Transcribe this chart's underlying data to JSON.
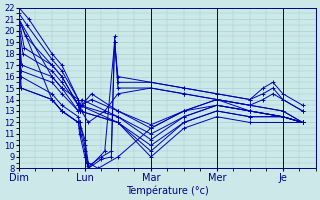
{
  "xlabel": "Température (°c)",
  "day_labels": [
    "Dim",
    "Lun",
    "Mar",
    "Mer",
    "Je"
  ],
  "bg_color": "#cce8e8",
  "grid_color": "#99cccc",
  "line_color": "#0000bb",
  "figsize": [
    3.2,
    2.0
  ],
  "dpi": 100,
  "ylim": [
    8,
    22
  ],
  "xlim_days": 4.5,
  "lines": [
    {
      "x": [
        0.0,
        0.15,
        0.5,
        0.65,
        0.9,
        0.92,
        0.95,
        1.1,
        1.5,
        2.0,
        2.5,
        3.0,
        3.5,
        4.0,
        4.3
      ],
      "y": [
        22,
        21,
        18,
        17,
        14,
        13,
        13.5,
        14,
        13,
        11.8,
        13,
        14,
        13.5,
        13,
        12
      ]
    },
    {
      "x": [
        0.0,
        0.12,
        0.5,
        0.65,
        0.9,
        0.92,
        0.95,
        1.1,
        1.5,
        2.0,
        2.5,
        3.0,
        3.5,
        4.0,
        4.3
      ],
      "y": [
        21.5,
        20.5,
        17.5,
        16.5,
        14,
        13,
        13.5,
        14.5,
        13,
        11.5,
        13,
        14,
        13,
        12.5,
        12
      ]
    },
    {
      "x": [
        0.0,
        0.1,
        0.5,
        0.65,
        0.9,
        0.92,
        0.95,
        1.5,
        2.0,
        2.5,
        3.0,
        3.5,
        4.0,
        4.3
      ],
      "y": [
        21,
        19.5,
        17,
        16,
        13.5,
        13,
        14,
        12.5,
        11,
        12.5,
        13.5,
        13,
        12.5,
        12
      ]
    },
    {
      "x": [
        0.0,
        0.08,
        0.5,
        0.65,
        0.9,
        0.92,
        1.5,
        2.0,
        2.5,
        3.0,
        3.5,
        4.0,
        4.3
      ],
      "y": [
        21,
        18.5,
        17,
        16,
        13.5,
        13.5,
        12.5,
        10.5,
        12.5,
        13.5,
        13,
        12.5,
        12
      ]
    },
    {
      "x": [
        0.0,
        0.06,
        0.5,
        0.65,
        0.9,
        0.92,
        1.5,
        2.0,
        2.5,
        3.0,
        3.5,
        4.0,
        4.3
      ],
      "y": [
        20.5,
        18,
        16.5,
        15.5,
        13.5,
        13.5,
        12,
        10,
        12,
        13,
        12.5,
        12.5,
        12
      ]
    },
    {
      "x": [
        0.0,
        0.04,
        0.5,
        0.65,
        0.9,
        0.92,
        1.5,
        2.0,
        2.5,
        3.0,
        3.5,
        4.0,
        4.3
      ],
      "y": [
        20,
        17,
        16,
        15,
        13,
        13,
        12,
        9.5,
        12,
        13,
        12.5,
        12.5,
        12
      ]
    },
    {
      "x": [
        0.0,
        0.03,
        0.5,
        0.65,
        0.9,
        0.92,
        1.5,
        2.0,
        2.5,
        3.0,
        3.5,
        4.0,
        4.3
      ],
      "y": [
        19.5,
        16.5,
        15.5,
        14.5,
        13,
        13,
        12,
        9,
        11.5,
        12.5,
        12,
        12,
        12
      ]
    },
    {
      "x": [
        0.0,
        0.03,
        0.5,
        0.65,
        0.9,
        0.92,
        1.0,
        1.05,
        1.2,
        1.5,
        2.0,
        2.5,
        3.0,
        3.5,
        4.0,
        4.3
      ],
      "y": [
        21,
        16,
        14.5,
        13.5,
        12.5,
        12,
        10.5,
        8.5,
        8,
        9,
        11.5,
        13,
        13.5,
        13,
        12.5,
        12
      ]
    },
    {
      "x": [
        0.0,
        0.03,
        0.5,
        0.65,
        0.9,
        0.92,
        1.0,
        1.05,
        1.25,
        1.4,
        1.45,
        1.5,
        2.0,
        2.5,
        3.0,
        3.5,
        3.7,
        3.85,
        4.0,
        4.3
      ],
      "y": [
        21,
        15,
        14,
        13,
        12,
        12,
        10,
        8.2,
        9,
        9.5,
        19.5,
        15,
        15,
        14.5,
        14,
        13.5,
        14,
        14.5,
        14,
        13
      ]
    },
    {
      "x": [
        0.0,
        0.03,
        0.5,
        0.65,
        0.9,
        0.92,
        1.0,
        1.05,
        1.25,
        1.4,
        1.45,
        1.5,
        2.0,
        2.5,
        3.0,
        3.5,
        3.7,
        3.85,
        4.0,
        4.3
      ],
      "y": [
        21,
        15,
        14,
        13,
        12,
        11.5,
        9.5,
        8,
        8.8,
        9,
        19,
        15.5,
        15.5,
        15,
        14.5,
        14,
        14.5,
        15,
        14,
        13
      ]
    },
    {
      "x": [
        0.0,
        0.5,
        0.65,
        0.9,
        0.92,
        1.0,
        1.05,
        1.3,
        1.45,
        1.5,
        2.0,
        2.5,
        3.0,
        3.5,
        3.7,
        3.85,
        4.0,
        4.3
      ],
      "y": [
        21,
        14,
        13,
        12,
        11,
        9,
        8,
        9.5,
        19,
        16,
        15.5,
        15,
        14.5,
        14,
        15,
        15.5,
        14.5,
        13.5
      ]
    },
    {
      "x": [
        0.0,
        0.5,
        0.65,
        0.9,
        0.95,
        1.05,
        1.3,
        1.5,
        2.0,
        2.5,
        3.0,
        3.5,
        4.0,
        4.3
      ],
      "y": [
        21,
        16,
        15,
        14,
        13,
        12,
        13,
        14.5,
        15,
        14.5,
        14,
        13.5,
        13,
        12
      ]
    }
  ]
}
